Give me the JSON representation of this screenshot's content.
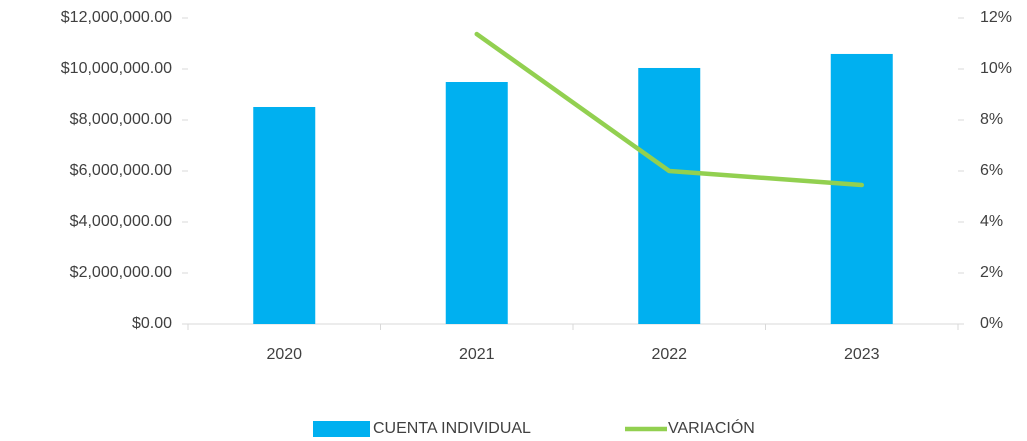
{
  "chart_data": {
    "type": "bar",
    "categories": [
      "2020",
      "2021",
      "2022",
      "2023"
    ],
    "series": [
      {
        "name": "CUENTA INDIVIDUAL",
        "color": "#00b0f0",
        "type": "bar",
        "values": [
          8510000,
          9490000,
          10040000,
          10590000
        ]
      },
      {
        "name": "VARIACIÓN",
        "color": "#92d050",
        "type": "line",
        "axis": "y2",
        "values": [
          null,
          11.37,
          6.0,
          5.45
        ]
      }
    ],
    "ylim": [
      0,
      12000000
    ],
    "yticks": [
      {
        "value": 0,
        "label": "$0.00"
      },
      {
        "value": 2000000,
        "label": "$2,000,000.00"
      },
      {
        "value": 4000000,
        "label": "$4,000,000.00"
      },
      {
        "value": 6000000,
        "label": "$6,000,000.00"
      },
      {
        "value": 8000000,
        "label": "$8,000,000.00"
      },
      {
        "value": 10000000,
        "label": "$10,000,000.00"
      },
      {
        "value": 12000000,
        "label": "$12,000,000.00"
      }
    ],
    "y2lim": [
      0,
      12
    ],
    "y2ticks": [
      {
        "value": 0,
        "label": "0%"
      },
      {
        "value": 2,
        "label": "2%"
      },
      {
        "value": 4,
        "label": "4%"
      },
      {
        "value": 6,
        "label": "6%"
      },
      {
        "value": 8,
        "label": "8%"
      },
      {
        "value": 10,
        "label": "10%"
      },
      {
        "value": 12,
        "label": "12%"
      }
    ],
    "grid": false,
    "legend": "bottom"
  }
}
